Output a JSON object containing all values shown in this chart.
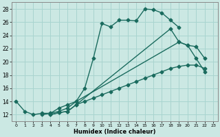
{
  "xlabel": "Humidex (Indice chaleur)",
  "bg_color": "#cbe8e3",
  "grid_color": "#a8d4cf",
  "line_color": "#1a6b5e",
  "xlim": [
    -0.5,
    23.5
  ],
  "ylim": [
    11,
    29
  ],
  "xticks": [
    0,
    1,
    2,
    3,
    4,
    5,
    6,
    7,
    8,
    9,
    10,
    11,
    12,
    13,
    14,
    15,
    16,
    17,
    18,
    19,
    20,
    21,
    22,
    23
  ],
  "yticks": [
    12,
    14,
    16,
    18,
    20,
    22,
    24,
    26,
    28
  ],
  "line1_x": [
    0,
    1,
    2,
    3,
    4,
    5,
    6,
    7,
    8,
    9,
    10,
    11,
    12,
    13,
    14,
    15,
    16,
    17,
    18,
    19
  ],
  "line1_y": [
    14,
    12.5,
    12,
    12.2,
    12.2,
    12.5,
    13.0,
    14.0,
    16.0,
    20.5,
    25.8,
    25.3,
    26.3,
    26.3,
    26.2,
    28.0,
    27.9,
    27.4,
    26.3,
    25.2
  ],
  "line2_x": [
    4,
    5,
    6,
    7,
    18,
    19,
    20,
    21,
    22
  ],
  "line2_y": [
    12.0,
    12.3,
    12.5,
    13.5,
    25.0,
    23.0,
    22.5,
    22.3,
    20.5
  ],
  "line3_x": [
    4,
    5,
    6,
    7,
    8,
    9,
    10,
    11,
    12,
    13,
    14,
    15,
    16,
    17,
    18,
    19,
    20,
    21,
    22
  ],
  "line3_y": [
    12.0,
    12.3,
    12.5,
    13.5,
    14.0,
    14.5,
    15.0,
    15.5,
    16.0,
    16.5,
    17.0,
    17.5,
    18.0,
    18.5,
    19.0,
    19.3,
    19.5,
    19.5,
    19.0
  ],
  "line4_x": [
    3,
    4,
    5,
    6,
    7,
    19,
    20,
    21,
    22
  ],
  "line4_y": [
    12.0,
    12.2,
    13.0,
    13.5,
    14.0,
    23.0,
    22.5,
    20.5,
    18.5
  ]
}
